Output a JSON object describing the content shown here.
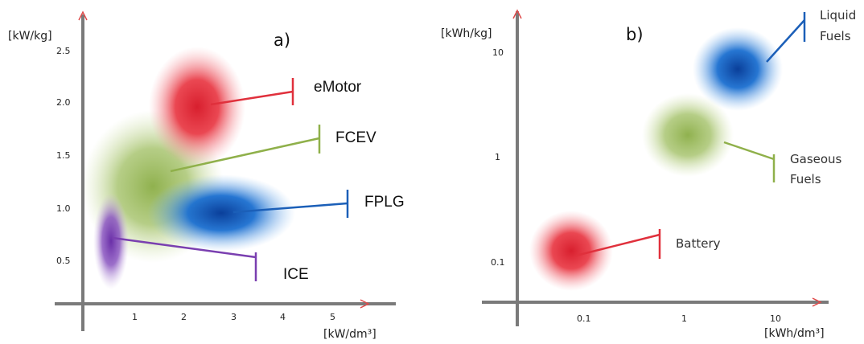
{
  "chart_data": [
    {
      "panel": "a)",
      "type": "scatter",
      "xlabel": "[kW/dm³]",
      "ylabel": "[kW/kg]",
      "xticks": [
        "1",
        "2",
        "3",
        "4",
        "5"
      ],
      "yticks": [
        "0.5",
        "1.0",
        "1.5",
        "2.0",
        "2.5"
      ],
      "series": [
        {
          "name": "eMotor",
          "x": 2.4,
          "y": 1.95,
          "color": "#e8333f"
        },
        {
          "name": "FCEV",
          "x": 1.6,
          "y": 1.3,
          "color": "#8fb04a"
        },
        {
          "name": "FPLG",
          "x": 2.8,
          "y": 0.95,
          "color": "#1b6fd0"
        },
        {
          "name": "ICE",
          "x": 0.5,
          "y": 0.7,
          "color": "#7a3fb0"
        }
      ]
    },
    {
      "panel": "b)",
      "type": "scatter",
      "xlabel": "[kWh/dm³]",
      "ylabel": "[kWh/kg]",
      "xticks": [
        "0.1",
        "1",
        "10"
      ],
      "yticks": [
        "0.1",
        "1",
        "10"
      ],
      "series": [
        {
          "name": "Liquid Fuels",
          "x": 4,
          "y": 7,
          "color": "#1b6fd0"
        },
        {
          "name": "Gaseous Fuels",
          "x": 1.2,
          "y": 1.5,
          "color": "#8fb04a"
        },
        {
          "name": "Battery",
          "x": 0.08,
          "y": 0.12,
          "color": "#e8333f"
        }
      ]
    }
  ]
}
